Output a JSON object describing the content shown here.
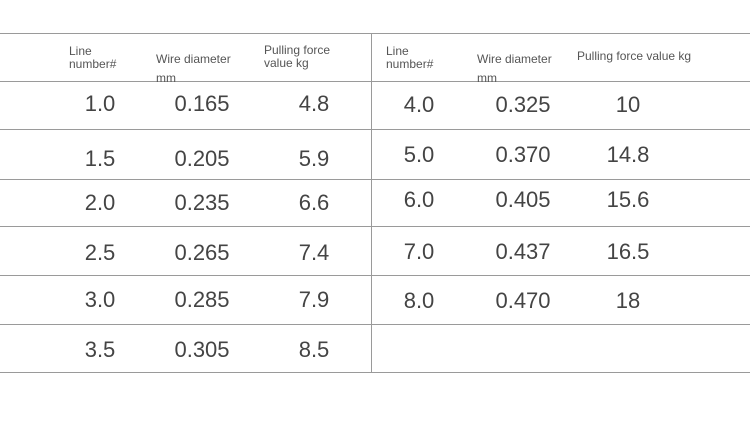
{
  "tables": [
    {
      "header": [
        "Line number#",
        "Wire diameter mm",
        "Pulling force value kg"
      ],
      "rows": [
        [
          "1.0",
          "0.165",
          "4.8"
        ],
        [
          "1.5",
          "0.205",
          "5.9"
        ],
        [
          "2.0",
          "0.235",
          "6.6"
        ],
        [
          "2.5",
          "0.265",
          "7.4"
        ],
        [
          "3.0",
          "0.285",
          "7.9"
        ],
        [
          "3.5",
          "0.305",
          "8.5"
        ]
      ]
    },
    {
      "header": [
        "Line number#",
        "Wire diameter mm",
        "Pulling force value kg"
      ],
      "rows": [
        [
          "4.0",
          "0.325",
          "10"
        ],
        [
          "5.0",
          "0.370",
          "14.8"
        ],
        [
          "6.0",
          "0.405",
          "15.6"
        ],
        [
          "7.0",
          "0.437",
          "16.5"
        ],
        [
          "8.0",
          "0.470",
          "18"
        ]
      ]
    }
  ]
}
